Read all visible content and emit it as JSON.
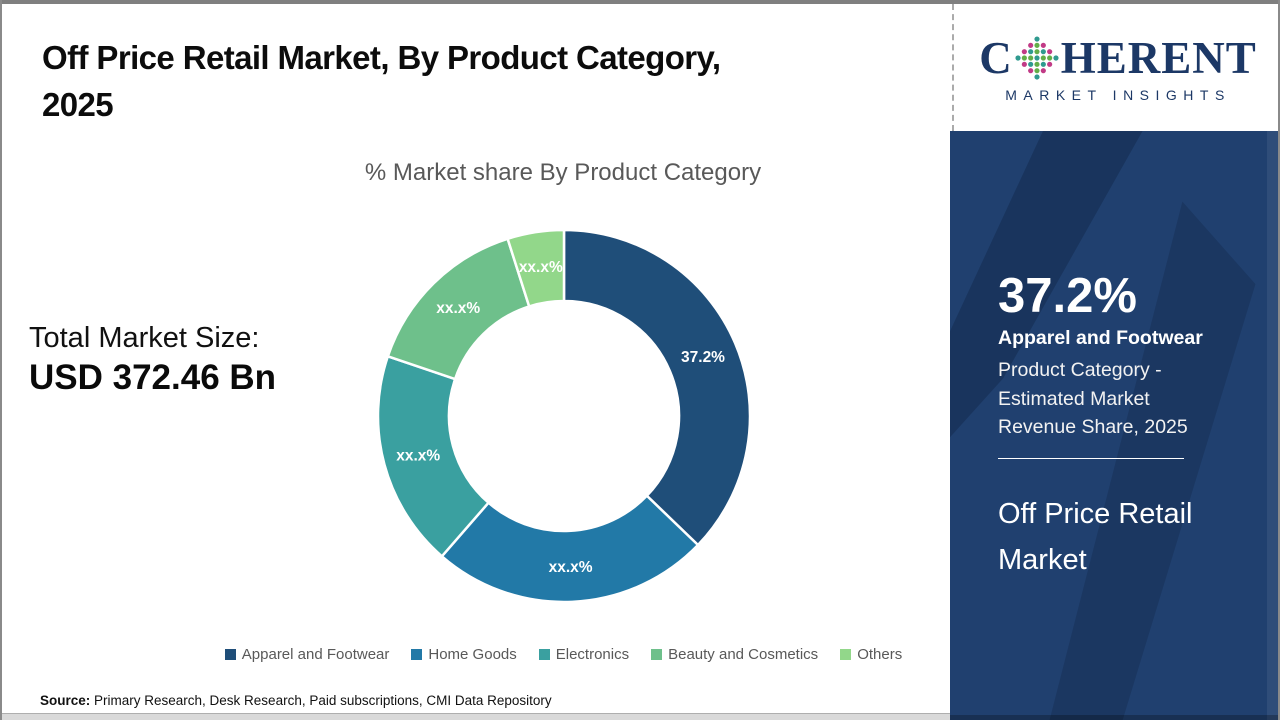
{
  "header": {
    "title": "Off Price Retail Market, By Product Category, 2025",
    "title_lines": [
      "Off Price Retail Market, By Product Category,",
      "2025"
    ]
  },
  "logo": {
    "name": "Coherent Market Insights",
    "word_prefix": "C",
    "word_suffix": "HERENT",
    "subtitle": "MARKET INSIGHTS",
    "text_color": "#1c3866",
    "dot_colors": {
      "outer": "#c13a86",
      "mid": "#2f9a8f",
      "inner": "#62ae49"
    }
  },
  "chart_data": {
    "type": "pie",
    "subtype": "donut",
    "title": "% Market share By Product Category",
    "categories": [
      "Apparel and Footwear",
      "Home Goods",
      "Electronics",
      "Beauty and Cosmetics",
      "Others"
    ],
    "values": [
      37.2,
      24.2,
      18.8,
      14.9,
      4.9
    ],
    "slice_labels": [
      "37.2%",
      "xx.x%",
      "xx.x%",
      "xx.x%",
      "xx.x%"
    ],
    "colors": [
      "#1f4e79",
      "#2279a7",
      "#3aa0a0",
      "#6ec08b",
      "#92d78a"
    ],
    "legend_position": "bottom",
    "start_angle_deg": 0,
    "inner_radius_ratio": 0.62,
    "note_masked_values": "Only the 37.2% slice is labeled; other slice values are masked as xx.x% and estimated from arc angles"
  },
  "total_market": {
    "label": "Total Market Size:",
    "value": "USD 372.46 Bn"
  },
  "sidebar": {
    "background_color": "#20406f",
    "highlight_value": "37.2%",
    "highlight_category": "Apparel and Footwear",
    "highlight_desc": "Product Category - Estimated Market Revenue Share, 2025",
    "highlight_desc_lines": [
      "Product Category -",
      "Estimated Market",
      "Revenue Share, 2025"
    ],
    "report_title": "Off Price Retail Market",
    "report_title_lines": [
      "Off Price Retail",
      "Market"
    ]
  },
  "source": {
    "label": "Source:",
    "text": " Primary Research, Desk Research, Paid subscriptions, CMI Data Repository"
  }
}
